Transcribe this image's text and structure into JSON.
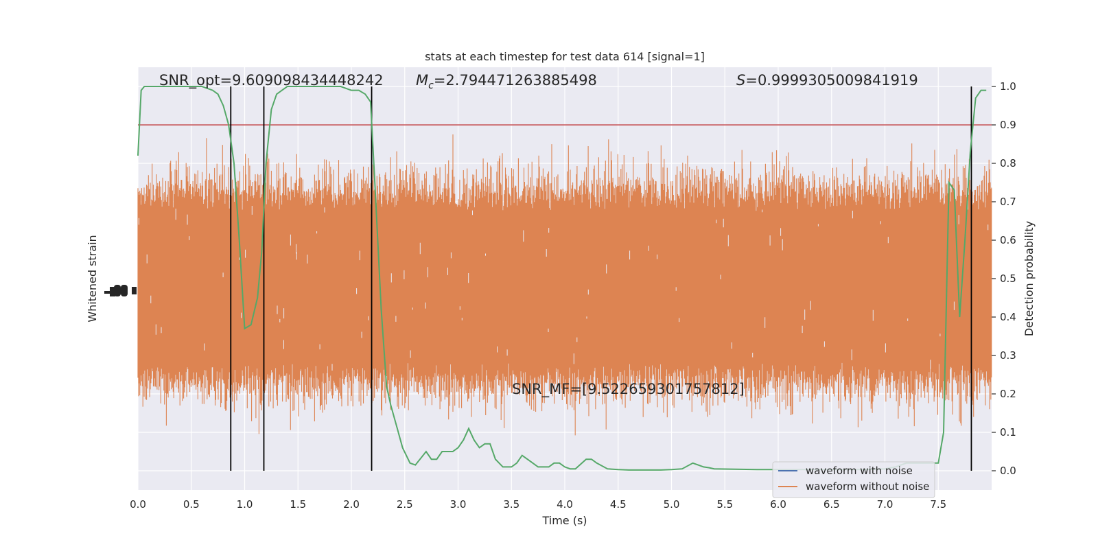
{
  "chart_data": {
    "type": "line",
    "title": "stats at each timestep for test data 614 [signal=1]",
    "xlabel": "Time (s)",
    "ylabel_left": "Whitened strain",
    "ylabel_right": "Detection probability",
    "xlim": [
      0,
      8
    ],
    "ylim_right": [
      -0.05,
      1.05
    ],
    "x_ticks": [
      0.0,
      0.5,
      1.0,
      1.5,
      2.0,
      2.5,
      3.0,
      3.5,
      4.0,
      4.5,
      5.0,
      5.5,
      6.0,
      6.5,
      7.0,
      7.5
    ],
    "x_tick_labels": [
      "0.0",
      "0.5",
      "1.0",
      "1.5",
      "2.0",
      "2.5",
      "3.0",
      "3.5",
      "4.0",
      "4.5",
      "5.0",
      "5.5",
      "6.0",
      "6.5",
      "7.0",
      "7.5"
    ],
    "y_right_ticks": [
      0.0,
      0.1,
      0.2,
      0.3,
      0.4,
      0.5,
      0.6,
      0.7,
      0.8,
      0.9,
      1.0
    ],
    "y_right_tick_labels": [
      "0.0",
      "0.1",
      "0.2",
      "0.3",
      "0.4",
      "0.5",
      "0.6",
      "0.7",
      "0.8",
      "0.9",
      "1.0"
    ],
    "grid": true,
    "legend_placement": "lower-right",
    "threshold": 0.9,
    "vertical_lines": [
      0.87,
      1.18,
      2.19,
      7.81
    ],
    "annotations": {
      "snr_opt": "SNR_opt=9.609098434448242",
      "mc_symbol": "M",
      "mc_sub": "c",
      "mc_value": "=2.794471263885498",
      "s_symbol": "S",
      "s_value": "=0.9999305009841919",
      "snr_mf": "SNR_MF=[9.522659301757812]"
    },
    "series": [
      {
        "name": "waveform with noise",
        "color": "#4c72b0",
        "axis": "left"
      },
      {
        "name": "waveform without noise",
        "color": "#dd8452",
        "axis": "left"
      },
      {
        "name": "",
        "color": "#55a868",
        "axis": "right",
        "x": [
          0.0,
          0.03,
          0.06,
          0.12,
          0.2,
          0.3,
          0.4,
          0.5,
          0.6,
          0.7,
          0.75,
          0.8,
          0.85,
          0.9,
          0.95,
          1.0,
          1.06,
          1.12,
          1.16,
          1.2,
          1.25,
          1.3,
          1.35,
          1.4,
          1.5,
          1.6,
          1.7,
          1.8,
          1.9,
          2.0,
          2.07,
          2.13,
          2.18,
          2.22,
          2.28,
          2.33,
          2.37,
          2.43,
          2.48,
          2.55,
          2.6,
          2.7,
          2.75,
          2.8,
          2.85,
          2.9,
          2.95,
          3.0,
          3.05,
          3.1,
          3.15,
          3.2,
          3.25,
          3.3,
          3.35,
          3.42,
          3.5,
          3.55,
          3.6,
          3.65,
          3.7,
          3.75,
          3.8,
          3.85,
          3.9,
          3.95,
          4.0,
          4.05,
          4.1,
          4.2,
          4.25,
          4.3,
          4.4,
          4.5,
          4.6,
          4.7,
          4.8,
          4.9,
          5.0,
          5.1,
          5.2,
          5.3,
          5.35,
          5.4,
          5.6,
          5.8,
          6.0,
          6.2,
          6.4,
          6.6,
          6.8,
          7.0,
          7.1,
          7.2,
          7.3,
          7.35,
          7.4,
          7.5,
          7.55,
          7.6,
          7.65,
          7.7,
          7.75,
          7.8,
          7.85,
          7.9,
          7.95
        ],
        "values": [
          0.82,
          0.99,
          1.0,
          1.0,
          1.0,
          1.0,
          1.0,
          1.0,
          1.0,
          0.99,
          0.98,
          0.95,
          0.9,
          0.8,
          0.6,
          0.37,
          0.38,
          0.45,
          0.57,
          0.8,
          0.94,
          0.98,
          0.99,
          1.0,
          1.0,
          1.0,
          1.0,
          1.0,
          1.0,
          0.99,
          0.99,
          0.98,
          0.96,
          0.75,
          0.42,
          0.22,
          0.17,
          0.11,
          0.06,
          0.02,
          0.015,
          0.05,
          0.03,
          0.03,
          0.05,
          0.05,
          0.05,
          0.06,
          0.08,
          0.11,
          0.08,
          0.06,
          0.07,
          0.07,
          0.03,
          0.01,
          0.01,
          0.02,
          0.04,
          0.03,
          0.02,
          0.01,
          0.01,
          0.01,
          0.02,
          0.02,
          0.01,
          0.005,
          0.005,
          0.03,
          0.03,
          0.02,
          0.005,
          0.003,
          0.002,
          0.002,
          0.002,
          0.002,
          0.003,
          0.005,
          0.02,
          0.01,
          0.008,
          0.005,
          0.004,
          0.003,
          0.003,
          0.003,
          0.003,
          0.003,
          0.003,
          0.005,
          0.01,
          0.02,
          0.02,
          0.02,
          0.02,
          0.02,
          0.1,
          0.75,
          0.73,
          0.4,
          0.6,
          0.83,
          0.97,
          0.99,
          0.99
        ]
      }
    ]
  }
}
